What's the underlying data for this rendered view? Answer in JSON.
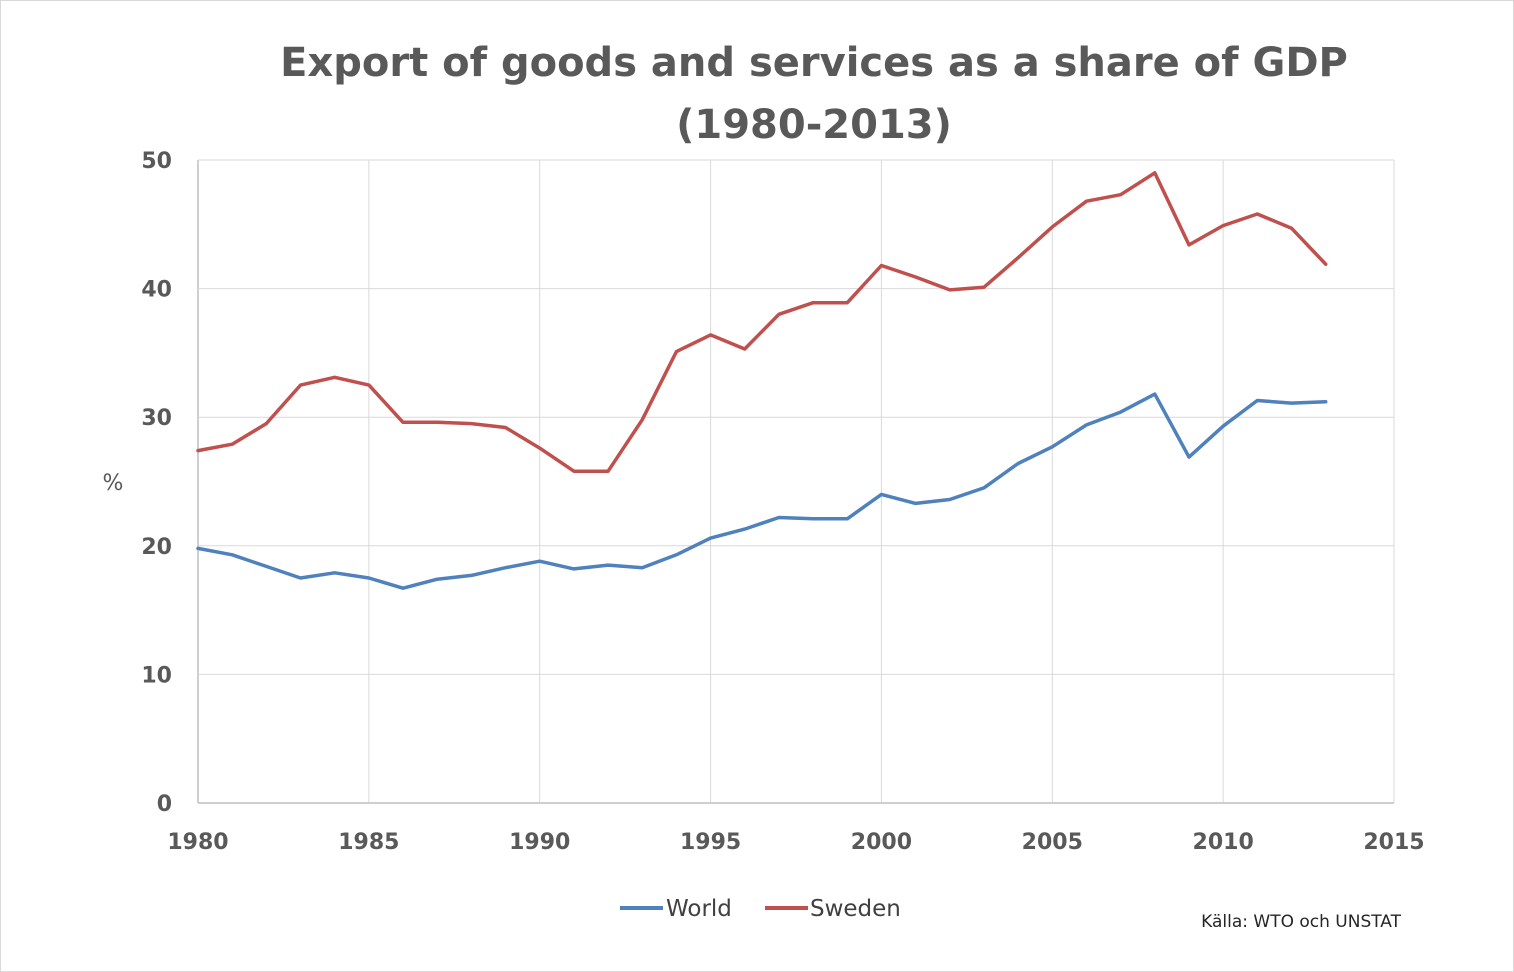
{
  "chart_data": {
    "type": "line",
    "title": [
      "Export of goods and services as a share of GDP",
      "(1980-2013)"
    ],
    "ylabel": "%",
    "xlabel": "",
    "xlim": [
      1980,
      2015
    ],
    "ylim": [
      0,
      50
    ],
    "x_ticks": [
      "1980",
      "1985",
      "1990",
      "1995",
      "2000",
      "2005",
      "2010",
      "2015"
    ],
    "y_ticks": [
      "0",
      "10",
      "20",
      "30",
      "40",
      "50"
    ],
    "grid": true,
    "legend_position": "bottom-center",
    "x": [
      1980,
      1981,
      1982,
      1983,
      1984,
      1985,
      1986,
      1987,
      1988,
      1989,
      1990,
      1991,
      1992,
      1993,
      1994,
      1995,
      1996,
      1997,
      1998,
      1999,
      2000,
      2001,
      2002,
      2003,
      2004,
      2005,
      2006,
      2007,
      2008,
      2009,
      2010,
      2011,
      2012,
      2013
    ],
    "series": [
      {
        "name": "World",
        "color": "#4f81bd",
        "values": [
          19.8,
          19.3,
          18.4,
          17.5,
          17.9,
          17.5,
          16.7,
          17.4,
          17.7,
          18.3,
          18.8,
          18.2,
          18.5,
          18.3,
          19.3,
          20.6,
          21.3,
          22.2,
          22.1,
          22.1,
          24.0,
          23.3,
          23.6,
          24.5,
          26.4,
          27.7,
          29.4,
          30.4,
          31.8,
          26.9,
          29.3,
          31.3,
          31.1,
          31.2
        ]
      },
      {
        "name": "Sweden",
        "color": "#c0504d",
        "values": [
          27.4,
          27.9,
          29.5,
          32.5,
          33.1,
          32.5,
          29.6,
          29.6,
          29.5,
          29.2,
          27.6,
          25.8,
          25.8,
          29.8,
          35.1,
          36.4,
          35.3,
          38.0,
          38.9,
          38.9,
          41.8,
          40.9,
          39.9,
          40.1,
          42.4,
          44.8,
          46.8,
          47.3,
          49.0,
          43.4,
          44.9,
          45.8,
          44.7,
          41.9
        ]
      }
    ]
  },
  "source_note": "Källa: WTO och UNSTAT"
}
